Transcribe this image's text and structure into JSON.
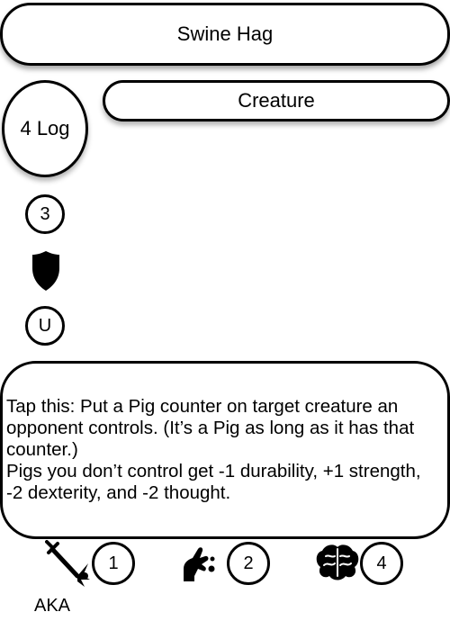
{
  "card": {
    "name": "Swine Hag",
    "type": "Creature",
    "cost": "4 Log",
    "power": "3",
    "rarity": "U",
    "rules": [
      "Tap this: Put a Pig counter on target creature an opponent controls. (It’s a Pig as long as it has that counter.)",
      "Pigs you don’t control get -1 durability, +1 strength, -2 dexterity, and -2 thought."
    ],
    "stats": [
      {
        "icon": "sword-icon",
        "value": "1"
      },
      {
        "icon": "hand-icon",
        "value": "2"
      },
      {
        "icon": "brain-icon",
        "value": "4"
      }
    ],
    "aka": "AKA"
  }
}
